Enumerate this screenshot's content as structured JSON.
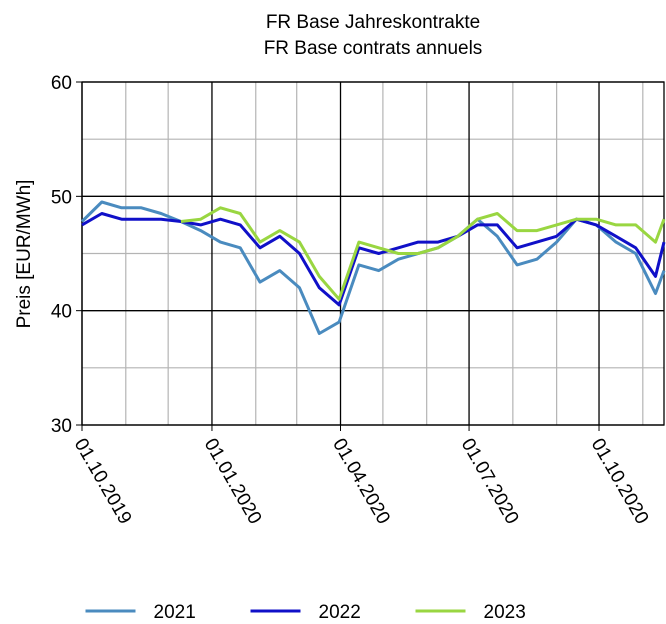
{
  "chart_data": {
    "type": "line",
    "title": "FR Base Jahreskontrakte",
    "subtitle": "FR Base contrats annuels",
    "ylabel": "Preis [EUR/MWh]",
    "x": [
      "2019-10-01",
      "2019-10-15",
      "2019-10-29",
      "2019-11-12",
      "2019-11-26",
      "2019-12-10",
      "2019-12-24",
      "2020-01-07",
      "2020-01-21",
      "2020-02-04",
      "2020-02-18",
      "2020-03-03",
      "2020-03-17",
      "2020-03-31",
      "2020-04-14",
      "2020-04-28",
      "2020-05-12",
      "2020-05-26",
      "2020-06-09",
      "2020-06-23",
      "2020-07-07",
      "2020-07-21",
      "2020-08-04",
      "2020-08-18",
      "2020-09-01",
      "2020-09-15",
      "2020-09-29",
      "2020-10-13",
      "2020-10-27",
      "2020-11-10",
      "2020-11-16"
    ],
    "series": [
      {
        "name": "2021",
        "color": "#4a8bbf",
        "values": [
          47.8,
          49.5,
          49,
          49,
          48.5,
          47.8,
          47,
          46,
          45.5,
          42.5,
          43.5,
          42,
          38,
          39,
          44,
          43.5,
          44.5,
          45,
          45.5,
          46.5,
          48,
          46.5,
          44,
          44.5,
          46,
          48,
          47.5,
          46,
          45,
          41.5,
          43.5
        ]
      },
      {
        "name": "2022",
        "color": "#1010c8",
        "values": [
          47.5,
          48.5,
          48,
          48,
          48,
          47.8,
          47.5,
          48,
          47.5,
          45.5,
          46.5,
          45,
          42,
          40.5,
          45.5,
          45,
          45.5,
          46,
          46,
          46.5,
          47.5,
          47.5,
          45.5,
          46,
          46.5,
          48,
          47.5,
          46.5,
          45.5,
          43,
          46
        ]
      },
      {
        "name": "2023",
        "color": "#99d641",
        "values": [
          null,
          null,
          null,
          null,
          null,
          47.8,
          48,
          49,
          48.5,
          46,
          47,
          46,
          43,
          41,
          46,
          45.5,
          45,
          45,
          45.5,
          46.5,
          48,
          48.5,
          47,
          47,
          47.5,
          48,
          48,
          47.5,
          47.5,
          46,
          48
        ]
      }
    ],
    "xlim": [
      "2019-10-01",
      "2020-11-16"
    ],
    "xticks": [
      {
        "value": "2019-10-01",
        "label": "01.10.2019"
      },
      {
        "value": "2020-01-01",
        "label": "01.01.2020"
      },
      {
        "value": "2020-04-01",
        "label": "01.04.2020"
      },
      {
        "value": "2020-07-01",
        "label": "01.07.2020"
      },
      {
        "value": "2020-10-01",
        "label": "01.10.2020"
      }
    ],
    "x_minor_ticks": [
      "2019-11-01",
      "2019-12-01",
      "2020-02-01",
      "2020-03-01",
      "2020-05-01",
      "2020-06-01",
      "2020-08-01",
      "2020-09-01",
      "2020-11-01"
    ],
    "ylim": [
      30,
      60
    ],
    "yticks": [
      30,
      40,
      50,
      60
    ],
    "y_minor_ticks": [
      35,
      45,
      55
    ],
    "grid": true,
    "legend": "bottom"
  }
}
